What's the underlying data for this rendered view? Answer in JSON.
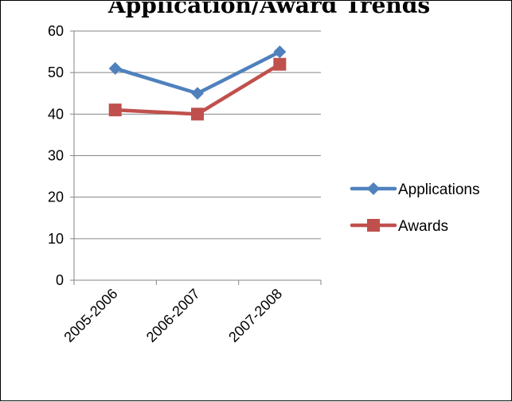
{
  "chart_data": {
    "type": "line",
    "title": "Application/Award Trends",
    "categories": [
      "2005-2006",
      "2006-2007",
      "2007-2008"
    ],
    "series": [
      {
        "name": "Applications",
        "values": [
          51,
          45,
          55
        ],
        "color": "#4F81BD",
        "marker": "diamond"
      },
      {
        "name": "Awards",
        "values": [
          41,
          40,
          52
        ],
        "color": "#C0504D",
        "marker": "square"
      }
    ],
    "ylim": [
      0,
      60
    ],
    "yticks": [
      "0",
      "10",
      "20",
      "30",
      "40",
      "50",
      "60"
    ],
    "grid": true,
    "legend": "right",
    "xlabel": "",
    "ylabel": ""
  }
}
